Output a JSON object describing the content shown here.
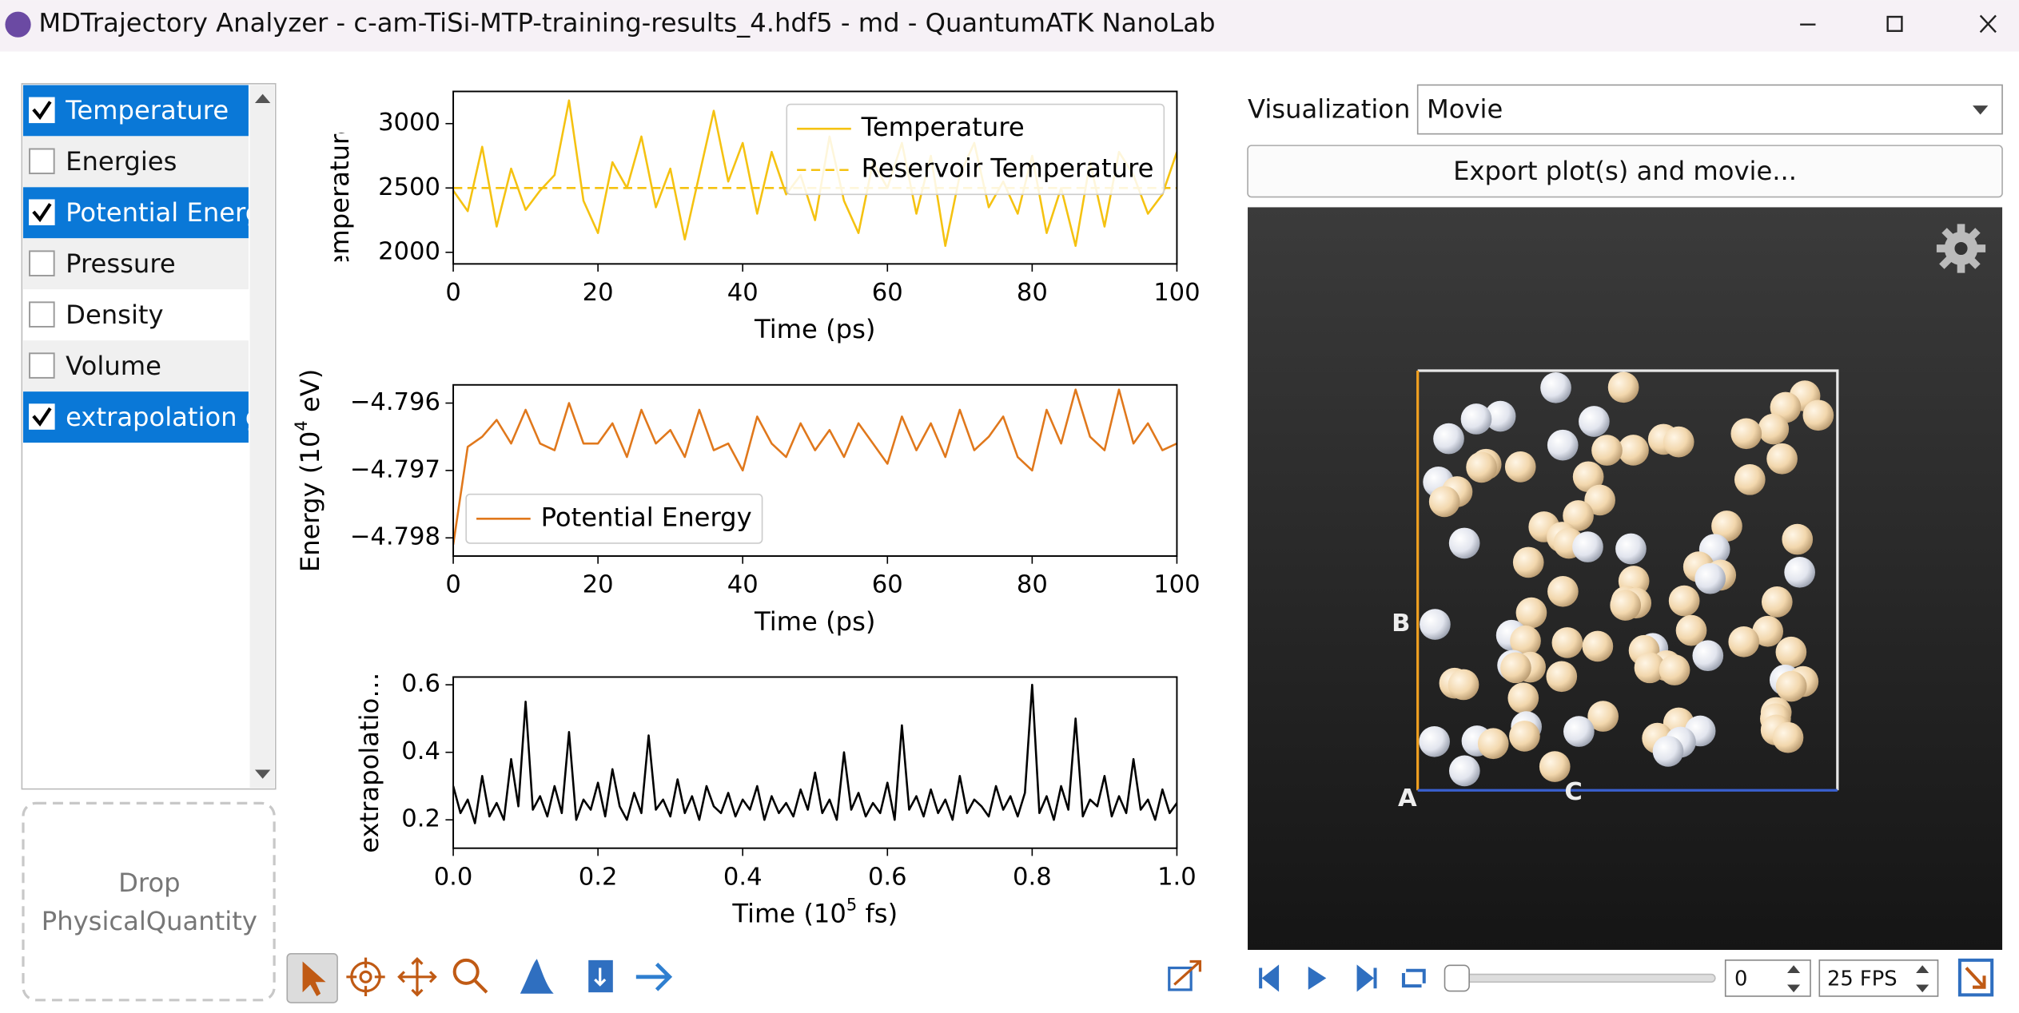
{
  "window": {
    "title": "MDTrajectory Analyzer - c-am-TiSi-MTP-training-results_4.hdf5 - md - QuantumATK NanoLab"
  },
  "quantities": [
    {
      "label": "Temperature",
      "checked": true
    },
    {
      "label": "Energies",
      "checked": false
    },
    {
      "label": "Potential Energ",
      "checked": true
    },
    {
      "label": "Pressure",
      "checked": false
    },
    {
      "label": "Density",
      "checked": false
    },
    {
      "label": "Volume",
      "checked": false
    },
    {
      "label": "extrapolation g",
      "checked": true
    }
  ],
  "drop_zone": [
    "Drop",
    "PhysicalQuantity"
  ],
  "chart_data": [
    {
      "type": "line",
      "ylabel": "Temperature (K)",
      "xlabel": "Time (ps)",
      "xlim": [
        0,
        100
      ],
      "xticks": [
        0,
        20,
        40,
        60,
        80,
        100
      ],
      "ylim": [
        1910,
        3250
      ],
      "yticks": [
        2000,
        2500,
        3000
      ],
      "legend": "upper right",
      "grid": false,
      "series": [
        {
          "name": "Temperature",
          "color": "#f5c211",
          "linestyle": "solid",
          "x": [
            0,
            2,
            4,
            6,
            8,
            10,
            12,
            14,
            16,
            18,
            20,
            22,
            24,
            26,
            28,
            30,
            32,
            34,
            36,
            38,
            40,
            42,
            44,
            46,
            48,
            50,
            52,
            54,
            56,
            58,
            60,
            62,
            64,
            66,
            68,
            70,
            72,
            74,
            76,
            78,
            80,
            82,
            84,
            86,
            88,
            90,
            92,
            94,
            96,
            98,
            100
          ],
          "values": [
            2480,
            2320,
            2820,
            2200,
            2650,
            2330,
            2480,
            2600,
            3180,
            2400,
            2150,
            2700,
            2500,
            2900,
            2350,
            2650,
            2100,
            2600,
            3100,
            2550,
            2850,
            2300,
            2780,
            2450,
            2600,
            2250,
            2900,
            2400,
            2150,
            2700,
            2500,
            2850,
            2300,
            2750,
            2050,
            2600,
            2850,
            2350,
            2550,
            2300,
            2750,
            2150,
            2500,
            2050,
            2700,
            2200,
            2780,
            2600,
            2300,
            2450,
            2780
          ]
        },
        {
          "name": "Reservoir Temperature",
          "color": "#f5c211",
          "linestyle": "dashed",
          "x": [
            0,
            100
          ],
          "values": [
            2500,
            2500
          ]
        }
      ]
    },
    {
      "type": "line",
      "ylabel": [
        "Energy (10",
        "4",
        " eV)"
      ],
      "xlabel": "Time (ps)",
      "xlim": [
        0,
        100
      ],
      "xticks": [
        0,
        20,
        40,
        60,
        80,
        100
      ],
      "ylim": [
        -4.79827,
        -4.79573
      ],
      "yticks": [
        {
          "value": -4.798,
          "label": "−4.798"
        },
        {
          "value": -4.797,
          "label": "−4.797"
        },
        {
          "value": -4.796,
          "label": "−4.796"
        }
      ],
      "legend": "lower left",
      "grid": false,
      "series": [
        {
          "name": "Potential Energy",
          "color": "#e0781c",
          "linestyle": "solid",
          "x": [
            0,
            2,
            4,
            6,
            8,
            10,
            12,
            14,
            16,
            18,
            20,
            22,
            24,
            26,
            28,
            30,
            32,
            34,
            36,
            38,
            40,
            42,
            44,
            46,
            48,
            50,
            52,
            54,
            56,
            58,
            60,
            62,
            64,
            66,
            68,
            70,
            72,
            74,
            76,
            78,
            80,
            82,
            84,
            86,
            88,
            90,
            92,
            94,
            96,
            98,
            100
          ],
          "values": [
            -4.7981,
            -4.79665,
            -4.7965,
            -4.79625,
            -4.7966,
            -4.7961,
            -4.7966,
            -4.7967,
            -4.796,
            -4.7966,
            -4.7966,
            -4.7963,
            -4.7968,
            -4.7961,
            -4.7966,
            -4.7964,
            -4.7968,
            -4.7961,
            -4.7967,
            -4.7966,
            -4.797,
            -4.7962,
            -4.7966,
            -4.7968,
            -4.7963,
            -4.7967,
            -4.7964,
            -4.7968,
            -4.7963,
            -4.7966,
            -4.7969,
            -4.7962,
            -4.7967,
            -4.7963,
            -4.7968,
            -4.7961,
            -4.7967,
            -4.7965,
            -4.7962,
            -4.7968,
            -4.797,
            -4.7961,
            -4.7966,
            -4.7958,
            -4.7965,
            -4.7967,
            -4.7958,
            -4.7966,
            -4.7963,
            -4.7967,
            -4.7966
          ]
        }
      ]
    },
    {
      "type": "line",
      "ylabel": "extrapolatio…",
      "xlabel": [
        "Time (10",
        "5",
        " fs)"
      ],
      "xlim": [
        0,
        1
      ],
      "xticks": [
        {
          "value": 0,
          "label": "0.0"
        },
        {
          "value": 0.2,
          "label": "0.2"
        },
        {
          "value": 0.4,
          "label": "0.4"
        },
        {
          "value": 0.6,
          "label": "0.6"
        },
        {
          "value": 0.8,
          "label": "0.8"
        },
        {
          "value": 1,
          "label": "1.0"
        }
      ],
      "ylim": [
        0.116,
        0.623
      ],
      "yticks": [
        0.2,
        0.4,
        0.6
      ],
      "grid": false,
      "series": [
        {
          "color": "#000000",
          "linestyle": "solid",
          "x": [
            0,
            0.01,
            0.02,
            0.03,
            0.04,
            0.05,
            0.06,
            0.07,
            0.08,
            0.09,
            0.1,
            0.11,
            0.12,
            0.13,
            0.14,
            0.15,
            0.16,
            0.17,
            0.18,
            0.19,
            0.2,
            0.21,
            0.22,
            0.23,
            0.24,
            0.25,
            0.26,
            0.27,
            0.28,
            0.29,
            0.3,
            0.31,
            0.32,
            0.33,
            0.34,
            0.35,
            0.36,
            0.37,
            0.38,
            0.39,
            0.4,
            0.41,
            0.42,
            0.43,
            0.44,
            0.45,
            0.46,
            0.47,
            0.48,
            0.49,
            0.5,
            0.51,
            0.52,
            0.53,
            0.54,
            0.55,
            0.56,
            0.57,
            0.58,
            0.59,
            0.6,
            0.61,
            0.62,
            0.63,
            0.64,
            0.65,
            0.66,
            0.67,
            0.68,
            0.69,
            0.7,
            0.71,
            0.72,
            0.73,
            0.74,
            0.75,
            0.76,
            0.77,
            0.78,
            0.79,
            0.8,
            0.81,
            0.82,
            0.83,
            0.84,
            0.85,
            0.86,
            0.87,
            0.88,
            0.89,
            0.9,
            0.91,
            0.92,
            0.93,
            0.94,
            0.95,
            0.96,
            0.97,
            0.98,
            0.99,
            1
          ],
          "values": [
            0.3,
            0.22,
            0.26,
            0.19,
            0.33,
            0.21,
            0.25,
            0.2,
            0.38,
            0.24,
            0.55,
            0.23,
            0.27,
            0.21,
            0.3,
            0.22,
            0.46,
            0.2,
            0.26,
            0.23,
            0.31,
            0.21,
            0.35,
            0.24,
            0.2,
            0.28,
            0.22,
            0.45,
            0.23,
            0.26,
            0.21,
            0.32,
            0.22,
            0.27,
            0.2,
            0.3,
            0.24,
            0.22,
            0.28,
            0.21,
            0.26,
            0.23,
            0.3,
            0.2,
            0.27,
            0.22,
            0.25,
            0.21,
            0.29,
            0.23,
            0.34,
            0.22,
            0.26,
            0.2,
            0.4,
            0.23,
            0.28,
            0.21,
            0.25,
            0.22,
            0.31,
            0.2,
            0.48,
            0.23,
            0.27,
            0.21,
            0.29,
            0.22,
            0.26,
            0.2,
            0.33,
            0.22,
            0.26,
            0.24,
            0.21,
            0.3,
            0.23,
            0.27,
            0.21,
            0.28,
            0.6,
            0.22,
            0.27,
            0.2,
            0.3,
            0.23,
            0.5,
            0.21,
            0.26,
            0.24,
            0.33,
            0.21,
            0.27,
            0.22,
            0.38,
            0.23,
            0.26,
            0.2,
            0.29,
            0.22,
            0.25
          ]
        }
      ]
    }
  ],
  "visualization": {
    "label": "Visualization",
    "mode": "Movie",
    "export_button": "Export plot(s) and movie...",
    "axes": [
      "A",
      "B",
      "C"
    ],
    "frame": "0",
    "fps": "25 FPS"
  }
}
